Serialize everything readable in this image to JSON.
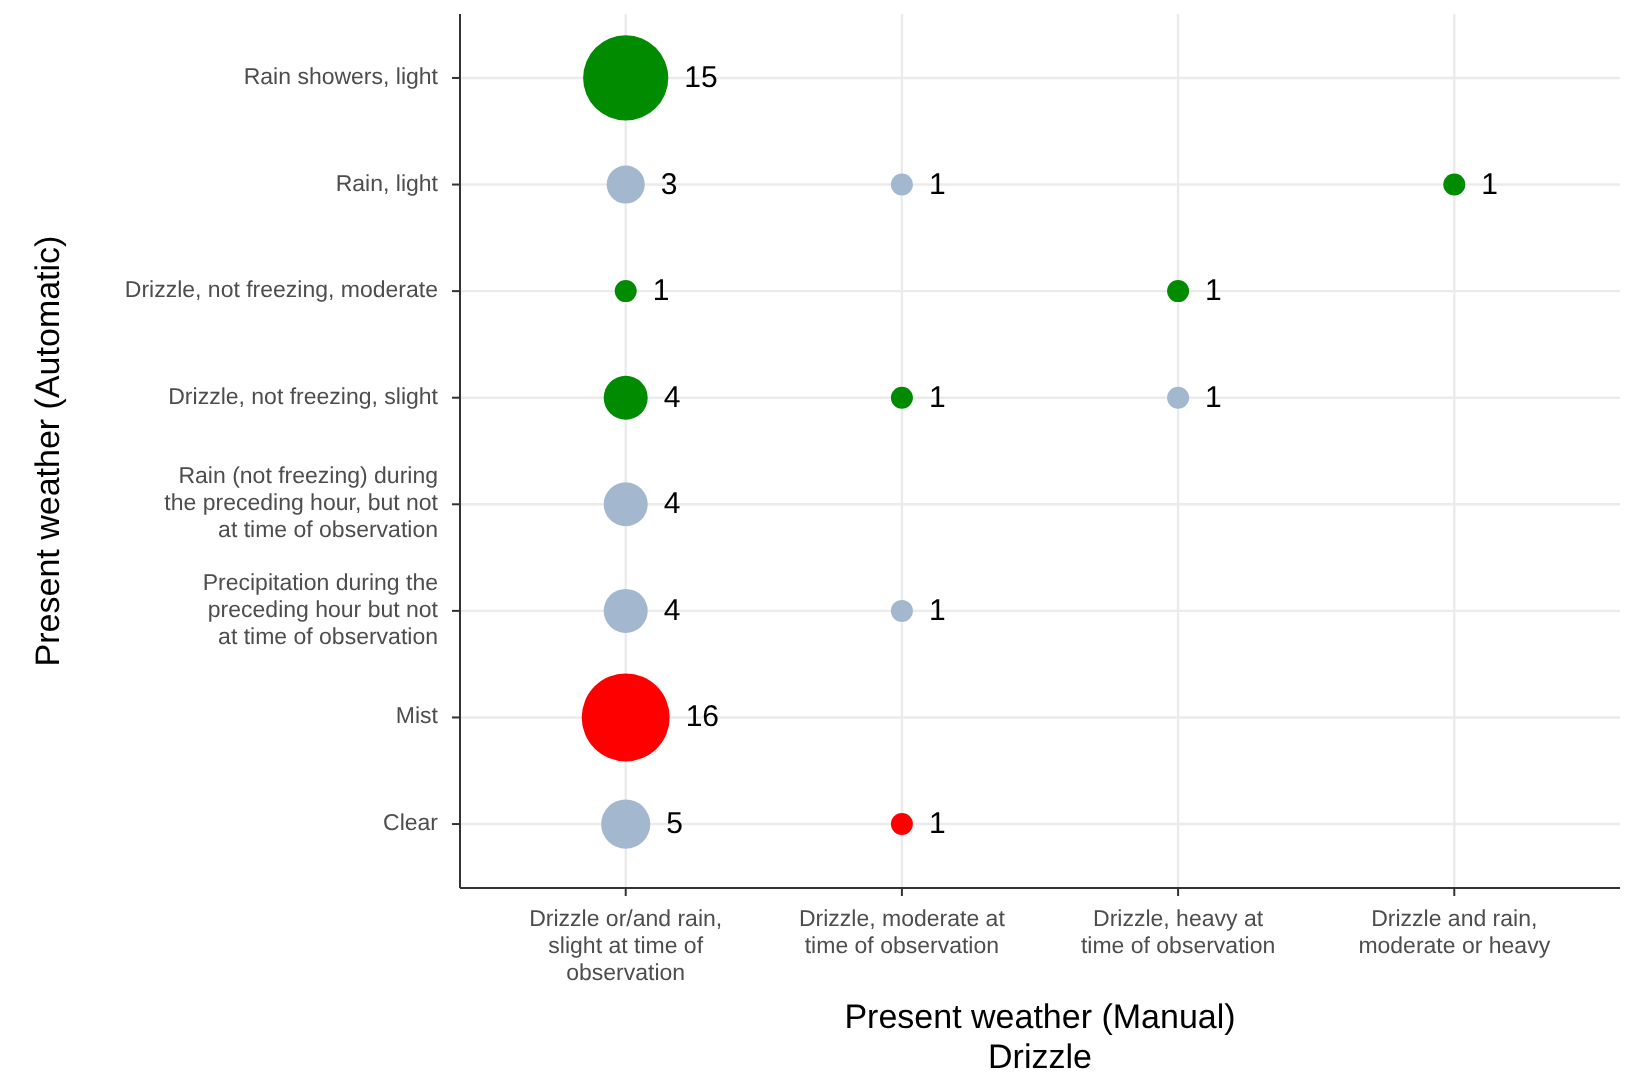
{
  "chart_data": {
    "type": "heatmap",
    "xlabel": "Present weather (Manual)\nDrizzle",
    "ylabel": "Present weather (Automatic)",
    "categories": [
      "Drizzle or/and rain,\nslight at time of\nobservation",
      "Drizzle, moderate at\ntime of observation",
      "Drizzle, heavy at\ntime of observation",
      "Drizzle and rain,\nmoderate or heavy"
    ],
    "y_categories": [
      "Rain showers, light",
      "Rain, light",
      "Drizzle, not freezing, moderate",
      "Drizzle, not freezing, slight",
      "Rain (not freezing) during\nthe preceding hour, but not\nat time of observation",
      "Precipitation during the\npreceding  hour but not\nat time of observation",
      "Mist",
      "Clear"
    ],
    "cells": [
      [
        15,
        null,
        null,
        null
      ],
      [
        3,
        1,
        null,
        1
      ],
      [
        1,
        null,
        1,
        null
      ],
      [
        4,
        1,
        1,
        null
      ],
      [
        4,
        null,
        null,
        null
      ],
      [
        4,
        1,
        null,
        null
      ],
      [
        16,
        null,
        null,
        null
      ],
      [
        5,
        1,
        null,
        null
      ]
    ],
    "colors": [
      [
        "#008b00",
        null,
        null,
        null
      ],
      [
        "#a3b8cf",
        "#a3b8cf",
        null,
        "#008b00"
      ],
      [
        "#008b00",
        null,
        "#008b00",
        null
      ],
      [
        "#008b00",
        "#008b00",
        "#a3b8cf",
        null
      ],
      [
        "#a3b8cf",
        null,
        null,
        null
      ],
      [
        "#a3b8cf",
        "#a3b8cf",
        null,
        null
      ],
      [
        "#ff0000",
        null,
        null,
        null
      ],
      [
        "#a3b8cf",
        "#ff0000",
        null,
        null
      ]
    ],
    "data_labels": true,
    "grid": true
  }
}
